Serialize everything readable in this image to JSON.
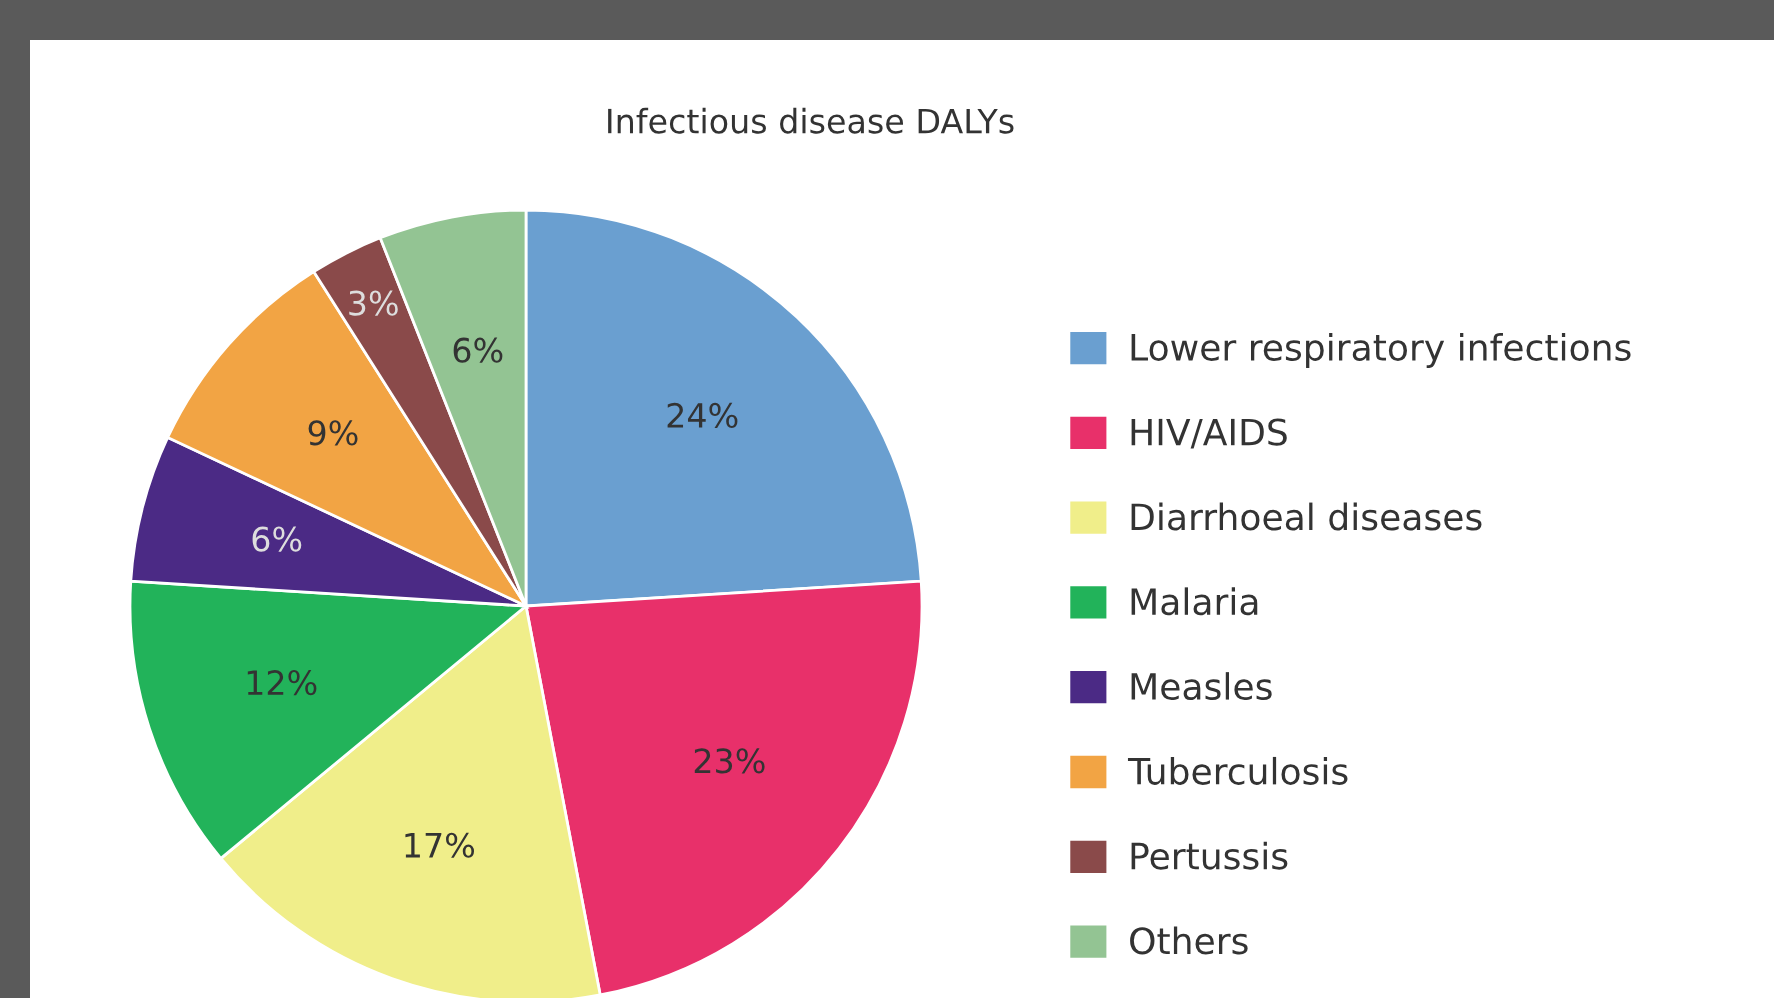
{
  "chart_data": {
    "type": "pie",
    "title": "Infectious disease DALYs",
    "categories": [
      "Lower respiratory infections",
      "HIV/AIDS",
      "Diarrhoeal diseases",
      "Malaria",
      "Measles",
      "Tuberculosis",
      "Pertussis",
      "Others"
    ],
    "values": [
      24,
      23,
      17,
      12,
      6,
      9,
      3,
      6
    ],
    "colors": [
      "#6a9fd0",
      "#e8306a",
      "#f0ee8a",
      "#22b35a",
      "#4b2a85",
      "#f2a444",
      "#8a4a4a",
      "#93c493"
    ],
    "value_labels": [
      "24%",
      "23%",
      "17%",
      "12%",
      "6%",
      "9%",
      "3%",
      "6%"
    ],
    "legend": "right"
  }
}
